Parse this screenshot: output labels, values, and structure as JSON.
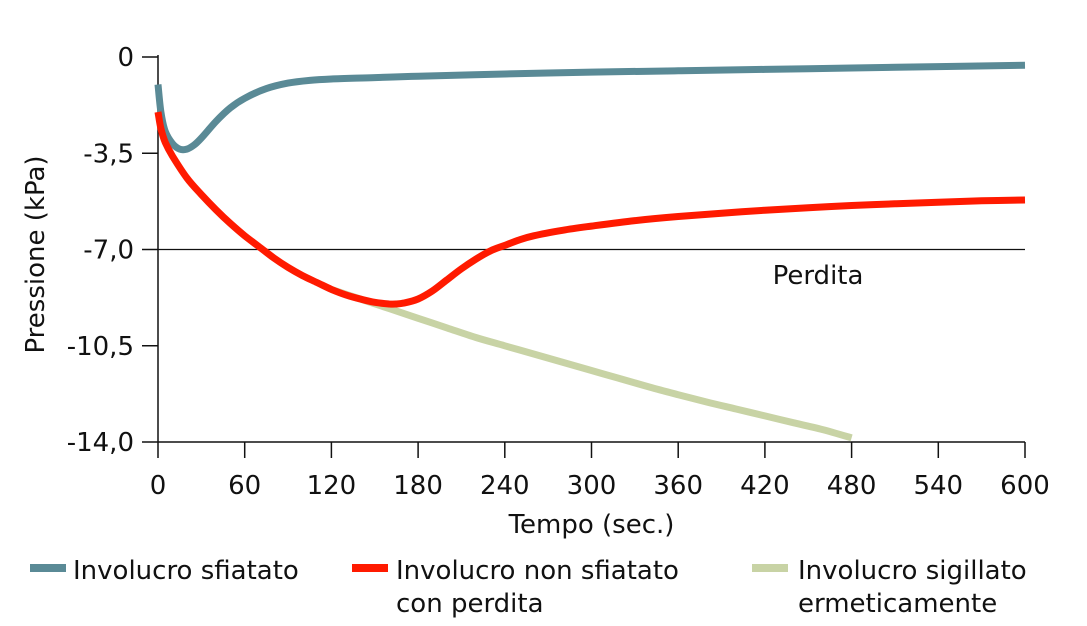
{
  "chart_data": {
    "type": "line",
    "xlabel": "Tempo (sec.)",
    "ylabel": "Pressione (kPa)",
    "xlim": [
      0,
      600
    ],
    "ylim": [
      -14,
      0
    ],
    "x_ticks": [
      0,
      60,
      120,
      180,
      240,
      300,
      360,
      420,
      480,
      540,
      600
    ],
    "x_tick_labels": [
      "0",
      "60",
      "120",
      "180",
      "240",
      "300",
      "360",
      "420",
      "480",
      "540",
      "600"
    ],
    "y_ticks": [
      0,
      -3.5,
      -7,
      -10.5,
      -14
    ],
    "y_tick_labels": [
      "0",
      "-3,5",
      "-7,0",
      "-10,5",
      "-14,0"
    ],
    "reference_line": {
      "y": -7,
      "label": "Perdita"
    },
    "grid": false,
    "legend_position": "bottom",
    "series": [
      {
        "name": "Involucro sfiatato",
        "color": "#5a8a96",
        "x": [
          0,
          2,
          5,
          10,
          15,
          20,
          25,
          30,
          40,
          50,
          60,
          75,
          90,
          105,
          120,
          150,
          180,
          240,
          300,
          360,
          420,
          480,
          540,
          600
        ],
        "y": [
          -1.0,
          -2.0,
          -2.7,
          -3.15,
          -3.35,
          -3.35,
          -3.2,
          -2.95,
          -2.35,
          -1.85,
          -1.5,
          -1.15,
          -0.95,
          -0.85,
          -0.8,
          -0.75,
          -0.7,
          -0.62,
          -0.55,
          -0.5,
          -0.45,
          -0.4,
          -0.35,
          -0.3
        ]
      },
      {
        "name": "Involucro non sfiatato con perdita",
        "color": "#ff1a00",
        "x": [
          0,
          2,
          5,
          10,
          20,
          30,
          40,
          50,
          60,
          70,
          80,
          90,
          100,
          110,
          120,
          130,
          140,
          150,
          160,
          165,
          170,
          180,
          190,
          200,
          210,
          220,
          230,
          240,
          250,
          260,
          280,
          300,
          330,
          360,
          390,
          420,
          450,
          480,
          510,
          540,
          570,
          600
        ],
        "y": [
          -2.0,
          -2.6,
          -3.1,
          -3.6,
          -4.4,
          -5.0,
          -5.55,
          -6.05,
          -6.5,
          -6.9,
          -7.3,
          -7.65,
          -7.95,
          -8.2,
          -8.45,
          -8.65,
          -8.8,
          -8.92,
          -8.98,
          -8.98,
          -8.95,
          -8.8,
          -8.5,
          -8.1,
          -7.7,
          -7.35,
          -7.05,
          -6.85,
          -6.65,
          -6.5,
          -6.3,
          -6.15,
          -5.95,
          -5.8,
          -5.68,
          -5.57,
          -5.48,
          -5.4,
          -5.34,
          -5.28,
          -5.23,
          -5.2
        ]
      },
      {
        "name": "Involucro sigillato ermeticamente",
        "color": "#c8d3a5",
        "x": [
          120,
          140,
          160,
          180,
          200,
          220,
          240,
          260,
          280,
          300,
          320,
          340,
          360,
          380,
          400,
          420,
          440,
          460,
          480
        ],
        "y": [
          -8.45,
          -8.8,
          -9.15,
          -9.5,
          -9.85,
          -10.2,
          -10.5,
          -10.8,
          -11.1,
          -11.4,
          -11.7,
          -12.0,
          -12.28,
          -12.55,
          -12.8,
          -13.05,
          -13.3,
          -13.55,
          -13.85
        ]
      }
    ]
  },
  "legend": {
    "items": [
      {
        "lines": [
          "Involucro sfiatato"
        ],
        "color": "#5a8a96"
      },
      {
        "lines": [
          "Involucro non sfiatato",
          "con perdita"
        ],
        "color": "#ff1a00"
      },
      {
        "lines": [
          "Involucro sigillato",
          "ermeticamente"
        ],
        "color": "#c8d3a5"
      }
    ]
  }
}
